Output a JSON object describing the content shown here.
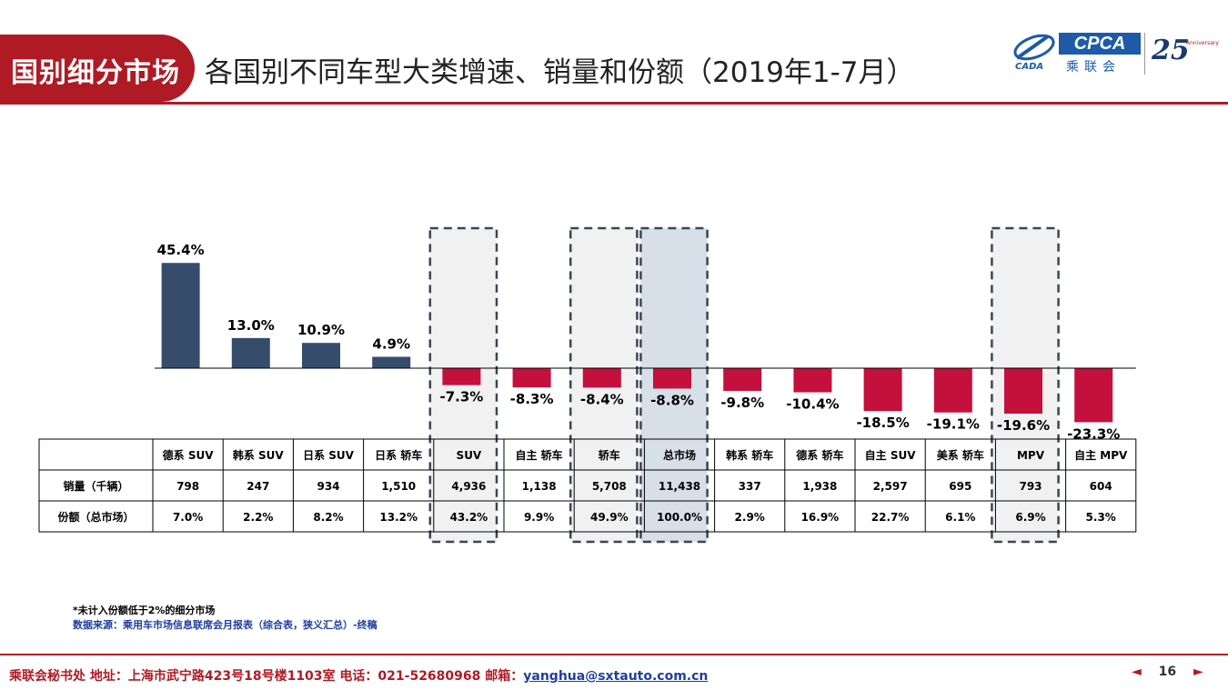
{
  "header": {
    "section_tab": "国别细分市场",
    "title": "各国别不同车型大类增速、销量和份额（2019年1-7月）",
    "logos": {
      "cada_text": "CADA",
      "cpca_text": "CPCA",
      "cpca_cn": "乘联会",
      "anniversary_number": "25",
      "anniversary_word": "Anniversary"
    }
  },
  "chart_data": {
    "type": "bar",
    "categories": [
      "德系 SUV",
      "韩系 SUV",
      "日系 SUV",
      "日系 轿车",
      "SUV",
      "自主 轿车",
      "轿车",
      "总市场",
      "韩系 轿车",
      "德系 轿车",
      "自主 SUV",
      "美系 轿车",
      "MPV",
      "自主 MPV"
    ],
    "values": [
      45.4,
      13.0,
      10.9,
      4.9,
      -7.3,
      -8.3,
      -8.4,
      -8.8,
      -9.8,
      -10.4,
      -18.5,
      -19.1,
      -19.6,
      -23.3
    ],
    "value_labels": [
      "45.4%",
      "13.0%",
      "10.9%",
      "4.9%",
      "-7.3%",
      "-8.3%",
      "-8.4%",
      "-8.8%",
      "-9.8%",
      "-10.4%",
      "-18.5%",
      "-19.1%",
      "-19.6%",
      "-23.3%"
    ],
    "highlighted_categories": [
      "SUV",
      "轿车",
      "总市场",
      "MPV"
    ],
    "emphasized_category": "总市场",
    "colors": {
      "positive": "#354c6b",
      "negative": "#c4103c",
      "highlight_fill": "#f1f1f1",
      "emphasis_fill": "#d7dfe8",
      "highlight_border": "#3b4556"
    },
    "table": {
      "rows": [
        {
          "label": "销量（千辆）",
          "values": [
            "798",
            "247",
            "934",
            "1,510",
            "4,936",
            "1,138",
            "5,708",
            "11,438",
            "337",
            "1,938",
            "2,597",
            "695",
            "793",
            "604"
          ]
        },
        {
          "label": "份额（总市场）",
          "values": [
            "7.0%",
            "2.2%",
            "8.2%",
            "13.2%",
            "43.2%",
            "9.9%",
            "49.9%",
            "100.0%",
            "2.9%",
            "16.9%",
            "22.7%",
            "6.1%",
            "6.9%",
            "5.3%"
          ]
        }
      ]
    }
  },
  "notes": {
    "footnote": "*未计入份额低于2%的细分市场",
    "source": "数据来源：乘用车市场信息联席会月报表（综合表，狭义汇总）-终稿"
  },
  "footer": {
    "contact": "乘联会秘书处   地址：上海市武宁路423号18号楼1103室  电话：021-52680968   邮箱：",
    "email": "yanghua@sxtauto.com.cn",
    "page_number": "16",
    "prev_arrow": "◄",
    "next_arrow": "►"
  }
}
